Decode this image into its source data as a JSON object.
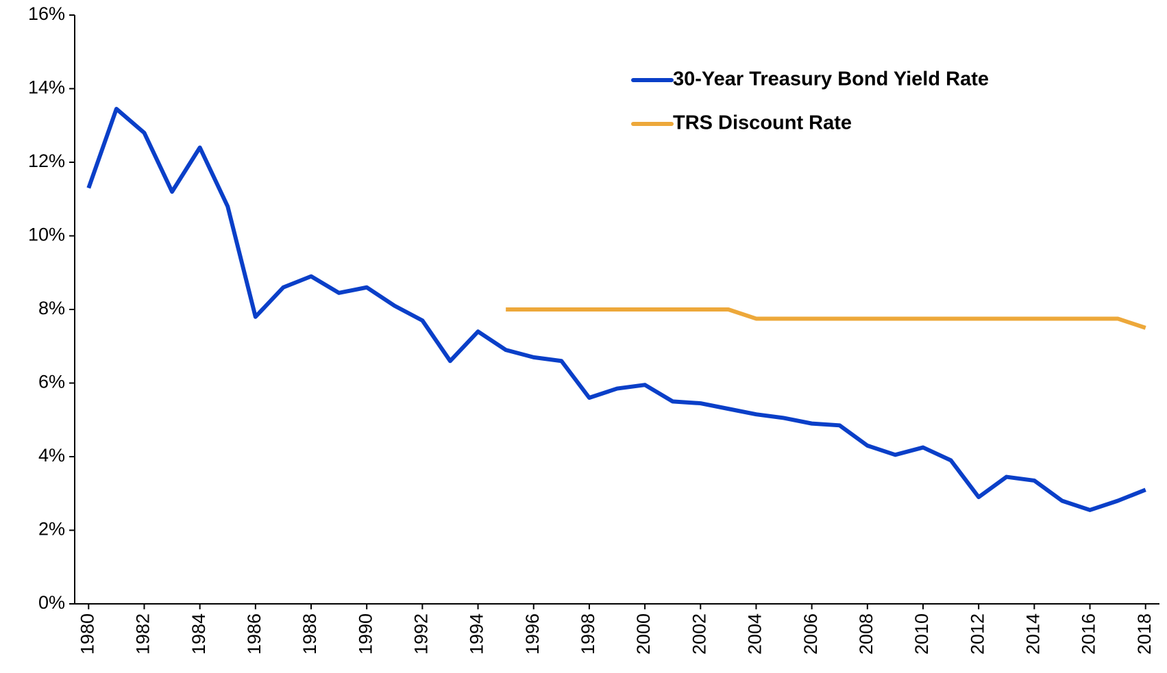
{
  "chart_data": {
    "type": "line",
    "x": [
      1980,
      1981,
      1982,
      1983,
      1984,
      1985,
      1986,
      1987,
      1988,
      1989,
      1990,
      1991,
      1992,
      1993,
      1994,
      1995,
      1996,
      1997,
      1998,
      1999,
      2000,
      2001,
      2002,
      2003,
      2004,
      2005,
      2006,
      2007,
      2008,
      2009,
      2010,
      2011,
      2012,
      2013,
      2014,
      2015,
      2016,
      2017,
      2018
    ],
    "series": [
      {
        "name": "30-Year Treasury Bond Yield Rate",
        "color": "#0a3fc8",
        "values": [
          11.3,
          13.45,
          12.8,
          11.2,
          12.4,
          10.8,
          7.8,
          8.6,
          8.9,
          8.45,
          8.6,
          8.1,
          7.7,
          6.6,
          7.4,
          6.9,
          6.7,
          6.6,
          5.6,
          5.85,
          5.95,
          5.5,
          5.45,
          5.3,
          5.15,
          5.05,
          4.9,
          4.85,
          4.3,
          4.05,
          4.25,
          3.9,
          2.9,
          3.45,
          3.35,
          2.8,
          2.55,
          2.8,
          3.1
        ]
      },
      {
        "name": "TRS Discount Rate",
        "color": "#eda83a",
        "values": [
          null,
          null,
          null,
          null,
          null,
          null,
          null,
          null,
          null,
          null,
          null,
          null,
          null,
          null,
          null,
          8,
          8,
          8,
          8,
          8,
          8,
          8,
          8,
          8,
          7.75,
          7.75,
          7.75,
          7.75,
          7.75,
          7.75,
          7.75,
          7.75,
          7.75,
          7.75,
          7.75,
          7.75,
          7.75,
          7.75,
          7.5
        ]
      }
    ],
    "xlim": [
      1979.5,
      2018.5
    ],
    "xticks": [
      1980,
      1982,
      1984,
      1986,
      1988,
      1990,
      1992,
      1994,
      1996,
      1998,
      2000,
      2002,
      2004,
      2006,
      2008,
      2010,
      2012,
      2014,
      2016,
      2018
    ],
    "ylim": [
      0,
      16
    ],
    "yticks": [
      {
        "value": 0,
        "label": "0%"
      },
      {
        "value": 2,
        "label": "2%"
      },
      {
        "value": 4,
        "label": "4%"
      },
      {
        "value": 6,
        "label": "6%"
      },
      {
        "value": 8,
        "label": "8%"
      },
      {
        "value": 10,
        "label": "10%"
      },
      {
        "value": 12,
        "label": "12%"
      },
      {
        "value": 14,
        "label": "14%"
      },
      {
        "value": 16,
        "label": "16%"
      }
    ],
    "grid": false,
    "legend": "upper-right"
  }
}
